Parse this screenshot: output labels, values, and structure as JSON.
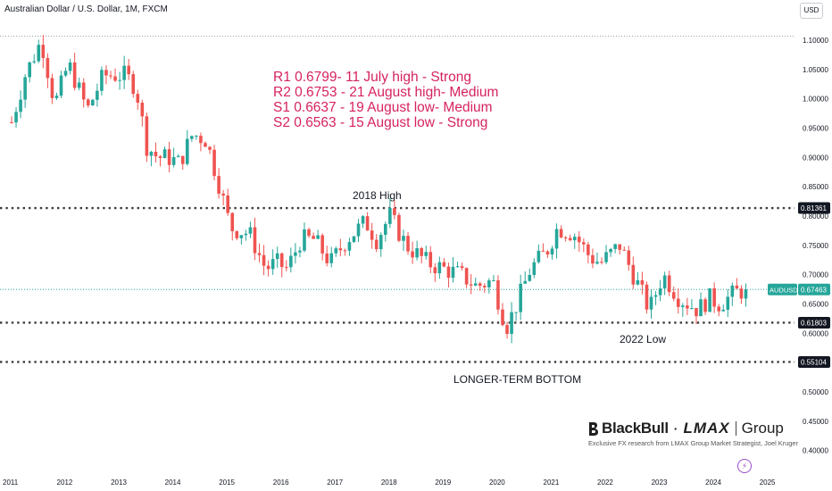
{
  "header": {
    "title": "Australian Dollar / U.S. Dollar, 1M, FXCM",
    "currency_button": "USD"
  },
  "levels_text": [
    "R1 0.6799- 11 July high - Strong",
    "R2 0.6753 - 21 August high- Medium",
    "S1 0.6637 - 19 August low- Medium",
    "S2 0.6563 - 15 August low - Strong"
  ],
  "brand": {
    "blackbull": "BlackBull",
    "dot": "·",
    "lmax": "LMAX",
    "group": "Group",
    "tagline": "Exclusive FX research from LMAX Group Market Strategist, Joel Kruger"
  },
  "colors": {
    "up": "#26a69a",
    "down": "#ef5350",
    "level_label_bg": "#131722",
    "price_label_bg": "#26a69a",
    "annotation": "#d6235e"
  },
  "chart_data": {
    "type": "candlestick",
    "symbol": "AUDUSD",
    "timeframe": "1M",
    "x_axis": {
      "ticks": [
        "2011",
        "2012",
        "2013",
        "2014",
        "2015",
        "2016",
        "2017",
        "2018",
        "2019",
        "2020",
        "2021",
        "2022",
        "2023",
        "2024",
        "2025"
      ]
    },
    "y_axis": {
      "position": "right",
      "range": [
        0.38,
        1.11
      ],
      "ticks": [
        "1.10000",
        "1.05000",
        "1.00000",
        "0.95000",
        "0.90000",
        "0.85000",
        "0.80000",
        "0.75000",
        "0.70000",
        "0.65000",
        "0.60000",
        "0.55000",
        "0.50000",
        "0.45000",
        "0.40000"
      ]
    },
    "last_price": {
      "label": "AUDUSD",
      "value": 0.67463
    },
    "horizontal_levels": [
      {
        "value": 0.81361,
        "label": "0.81361",
        "annotation": "2018 High"
      },
      {
        "value": 0.61803,
        "label": "0.61803",
        "annotation": "2022 Low"
      },
      {
        "value": 0.55104,
        "label": "0.55104",
        "annotation": "LONGER-TERM BOTTOM"
      }
    ],
    "anchors": [
      [
        2011.0,
        0.96
      ],
      [
        2011.25,
        1.04
      ],
      [
        2011.55,
        1.1
      ],
      [
        2011.8,
        0.99
      ],
      [
        2012.05,
        1.06
      ],
      [
        2012.4,
        0.98
      ],
      [
        2012.7,
        1.04
      ],
      [
        2013.1,
        1.04
      ],
      [
        2013.3,
        1.02
      ],
      [
        2013.5,
        0.92
      ],
      [
        2013.7,
        0.9
      ],
      [
        2013.9,
        0.9
      ],
      [
        2014.1,
        0.89
      ],
      [
        2014.35,
        0.94
      ],
      [
        2014.6,
        0.93
      ],
      [
        2014.85,
        0.85
      ],
      [
        2015.05,
        0.78
      ],
      [
        2015.4,
        0.77
      ],
      [
        2015.7,
        0.71
      ],
      [
        2015.9,
        0.72
      ],
      [
        2016.1,
        0.71
      ],
      [
        2016.35,
        0.76
      ],
      [
        2016.6,
        0.76
      ],
      [
        2016.9,
        0.72
      ],
      [
        2017.2,
        0.76
      ],
      [
        2017.55,
        0.79
      ],
      [
        2017.75,
        0.76
      ],
      [
        2018.0,
        0.8
      ],
      [
        2018.3,
        0.75
      ],
      [
        2018.7,
        0.72
      ],
      [
        2019.0,
        0.71
      ],
      [
        2019.3,
        0.7
      ],
      [
        2019.6,
        0.68
      ],
      [
        2019.9,
        0.69
      ],
      [
        2020.15,
        0.61
      ],
      [
        2020.3,
        0.64
      ],
      [
        2020.6,
        0.71
      ],
      [
        2020.9,
        0.74
      ],
      [
        2021.1,
        0.78
      ],
      [
        2021.4,
        0.77
      ],
      [
        2021.7,
        0.73
      ],
      [
        2021.9,
        0.72
      ],
      [
        2022.25,
        0.75
      ],
      [
        2022.55,
        0.69
      ],
      [
        2022.8,
        0.64
      ],
      [
        2023.05,
        0.7
      ],
      [
        2023.35,
        0.66
      ],
      [
        2023.7,
        0.64
      ],
      [
        2023.9,
        0.66
      ],
      [
        2024.1,
        0.65
      ],
      [
        2024.4,
        0.67
      ],
      [
        2024.62,
        0.67463
      ]
    ]
  }
}
